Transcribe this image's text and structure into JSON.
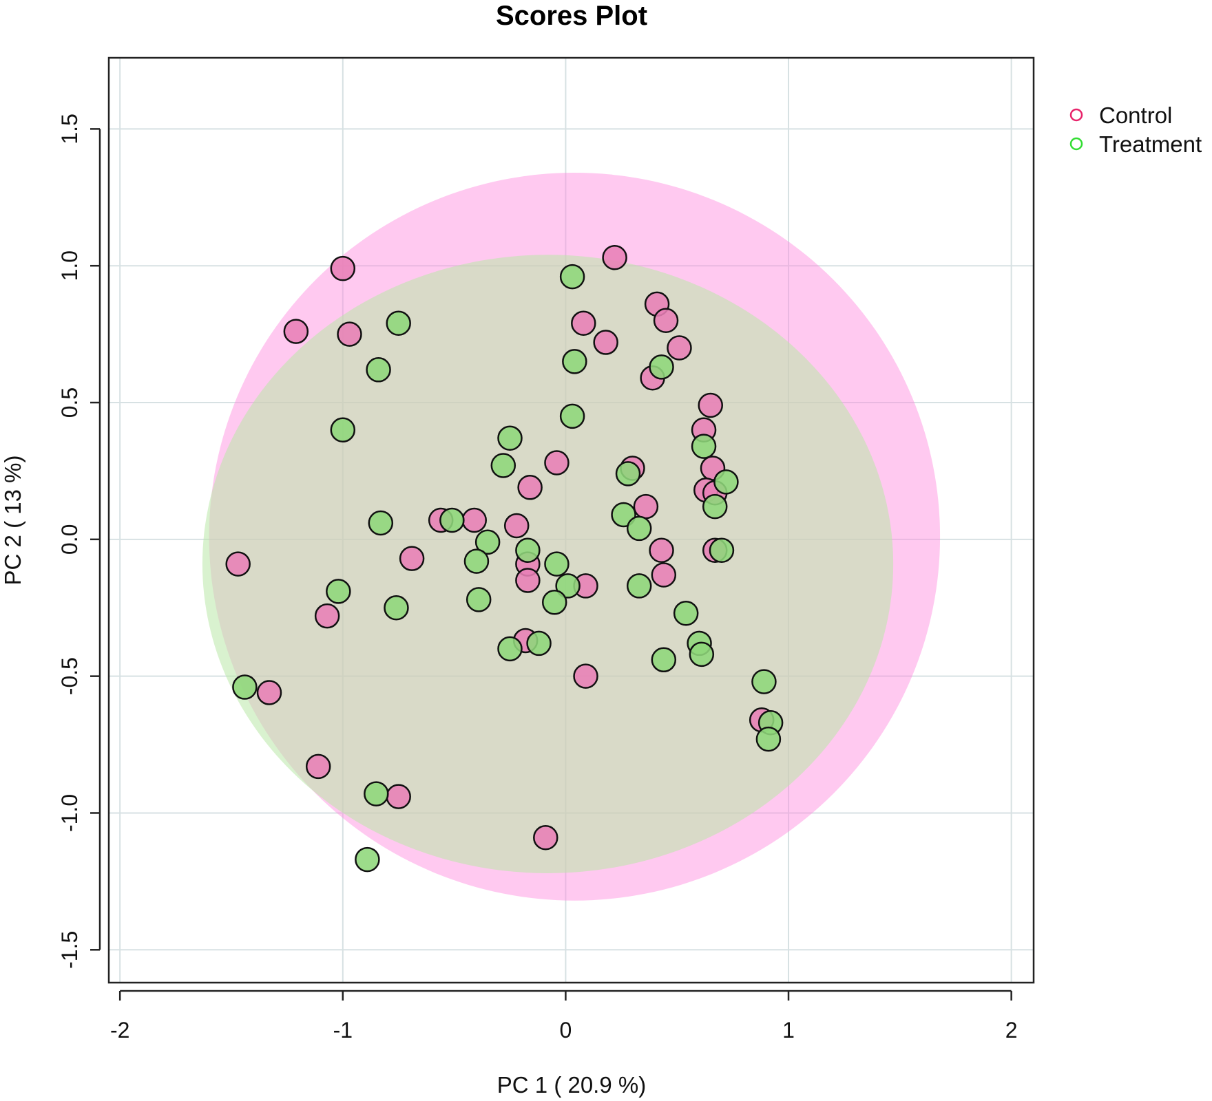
{
  "chart_data": {
    "type": "scatter",
    "title": "Scores Plot",
    "xlabel": "PC 1 ( 20.9 %)",
    "ylabel": "PC 2 ( 13 %)",
    "xlim": [
      -2.05,
      2.1
    ],
    "ylim": [
      -1.62,
      1.76
    ],
    "xticks": [
      -2,
      -1,
      0,
      1,
      2
    ],
    "xtick_labels": [
      "-2",
      "-1",
      "0",
      "1",
      "2"
    ],
    "yticks": [
      -1.5,
      -1.0,
      -0.5,
      0.0,
      0.5,
      1.0,
      1.5
    ],
    "ytick_labels": [
      "-1.5",
      "-1.0",
      "-0.5",
      "0.0",
      "0.5",
      "1.0",
      "1.5"
    ],
    "grid": true,
    "legend_position": "top-right",
    "legend": [
      {
        "label": "Control",
        "color": "#e8246b"
      },
      {
        "label": "Treatment",
        "color": "#33dd33"
      }
    ],
    "ellipses": [
      {
        "group": "Control",
        "center": [
          0.04,
          0.01
        ],
        "radius_x": 1.64,
        "radius_y": 1.33,
        "fill": "#ff88dd",
        "opacity": 0.45
      },
      {
        "group": "Treatment",
        "center": [
          -0.08,
          -0.09
        ],
        "radius_x": 1.55,
        "radius_y": 1.13,
        "fill": "#b9e8a8",
        "opacity": 0.55
      }
    ],
    "series": [
      {
        "name": "Control",
        "fill": "#e880b6",
        "points": [
          [
            0.22,
            1.03
          ],
          [
            -1.0,
            0.99
          ],
          [
            -1.21,
            0.76
          ],
          [
            -0.97,
            0.75
          ],
          [
            0.08,
            0.79
          ],
          [
            0.18,
            0.72
          ],
          [
            0.41,
            0.86
          ],
          [
            0.45,
            0.8
          ],
          [
            0.51,
            0.7
          ],
          [
            0.39,
            0.59
          ],
          [
            0.65,
            0.49
          ],
          [
            0.62,
            0.4
          ],
          [
            -0.04,
            0.28
          ],
          [
            -0.16,
            0.19
          ],
          [
            0.3,
            0.26
          ],
          [
            0.66,
            0.26
          ],
          [
            0.63,
            0.18
          ],
          [
            0.67,
            0.17
          ],
          [
            0.36,
            0.12
          ],
          [
            -0.56,
            0.07
          ],
          [
            -0.41,
            0.07
          ],
          [
            -0.22,
            0.05
          ],
          [
            -0.17,
            -0.09
          ],
          [
            -0.17,
            -0.15
          ],
          [
            -0.69,
            -0.07
          ],
          [
            -1.47,
            -0.09
          ],
          [
            0.09,
            -0.17
          ],
          [
            0.43,
            -0.04
          ],
          [
            0.44,
            -0.13
          ],
          [
            0.67,
            -0.04
          ],
          [
            -1.07,
            -0.28
          ],
          [
            -0.18,
            -0.37
          ],
          [
            0.09,
            -0.5
          ],
          [
            -1.33,
            -0.56
          ],
          [
            0.88,
            -0.66
          ],
          [
            -1.11,
            -0.83
          ],
          [
            -0.75,
            -0.94
          ],
          [
            -0.09,
            -1.09
          ]
        ]
      },
      {
        "name": "Treatment",
        "fill": "#8ed77a",
        "points": [
          [
            0.03,
            0.96
          ],
          [
            -0.75,
            0.79
          ],
          [
            -0.84,
            0.62
          ],
          [
            0.04,
            0.65
          ],
          [
            0.43,
            0.63
          ],
          [
            0.03,
            0.45
          ],
          [
            -1.0,
            0.4
          ],
          [
            -0.25,
            0.37
          ],
          [
            -0.28,
            0.27
          ],
          [
            0.62,
            0.34
          ],
          [
            0.28,
            0.24
          ],
          [
            0.72,
            0.21
          ],
          [
            0.67,
            0.12
          ],
          [
            0.26,
            0.09
          ],
          [
            0.33,
            0.04
          ],
          [
            -0.51,
            0.07
          ],
          [
            -0.83,
            0.06
          ],
          [
            -0.35,
            -0.01
          ],
          [
            -0.17,
            -0.04
          ],
          [
            -0.4,
            -0.08
          ],
          [
            -0.04,
            -0.09
          ],
          [
            0.01,
            -0.17
          ],
          [
            -0.05,
            -0.23
          ],
          [
            0.33,
            -0.17
          ],
          [
            0.7,
            -0.04
          ],
          [
            -1.02,
            -0.19
          ],
          [
            -0.76,
            -0.25
          ],
          [
            -0.39,
            -0.22
          ],
          [
            0.54,
            -0.27
          ],
          [
            -0.25,
            -0.4
          ],
          [
            -0.12,
            -0.38
          ],
          [
            0.6,
            -0.38
          ],
          [
            0.61,
            -0.42
          ],
          [
            0.44,
            -0.44
          ],
          [
            0.89,
            -0.52
          ],
          [
            -1.44,
            -0.54
          ],
          [
            0.92,
            -0.67
          ],
          [
            0.91,
            -0.73
          ],
          [
            -0.85,
            -0.93
          ],
          [
            -0.89,
            -1.17
          ]
        ]
      }
    ]
  }
}
